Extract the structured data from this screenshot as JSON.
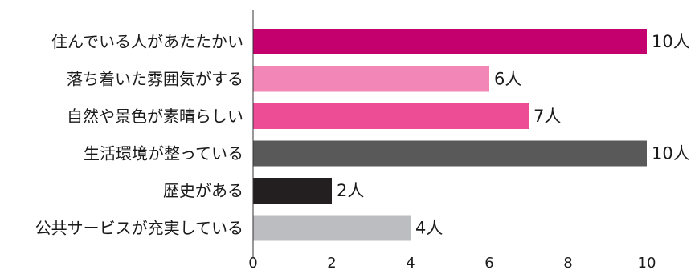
{
  "chart_data": {
    "type": "bar",
    "orientation": "horizontal",
    "categories": [
      "住んでいる人があたたかい",
      "落ち着いた雰囲気がする",
      "自然や景色が素晴らしい",
      "生活環境が整っている",
      "歴史がある",
      "公共サービスが充実している"
    ],
    "values": [
      10,
      6,
      7,
      10,
      2,
      4
    ],
    "value_labels": [
      "10人",
      "6人",
      "7人",
      "10人",
      "2人",
      "4人"
    ],
    "colors": [
      "#c4006f",
      "#f287b7",
      "#ec4d95",
      "#595959",
      "#231f20",
      "#bcbdc0"
    ],
    "xlim": [
      0,
      10
    ],
    "xticks": [
      0,
      2,
      4,
      6,
      8,
      10
    ],
    "grid": false,
    "legend": "none",
    "title": "",
    "xlabel": "",
    "ylabel": ""
  }
}
